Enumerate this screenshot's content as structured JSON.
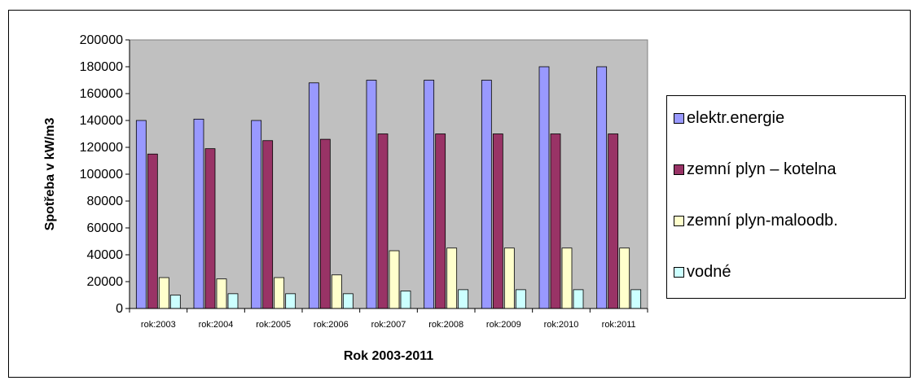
{
  "chart_data": {
    "type": "bar",
    "title": "",
    "xlabel": "Rok 2003-2011",
    "ylabel": "Spotřeba v kW/m3",
    "ylim": [
      0,
      200000
    ],
    "yticks": [
      "0",
      "20000",
      "40000",
      "60000",
      "80000",
      "100000",
      "120000",
      "140000",
      "160000",
      "180000",
      "200000"
    ],
    "grid": false,
    "legend_position": "right",
    "categories": [
      "rok:2003",
      "rok:2004",
      "rok:2005",
      "rok:2006",
      "rok:2007",
      "rok:2008",
      "rok:2009",
      "rok:2010",
      "rok:2011"
    ],
    "series": [
      {
        "name": "elektr.energie",
        "color": "#9999ff",
        "values": [
          140000,
          141000,
          140000,
          168000,
          170000,
          170000,
          170000,
          180000,
          180000
        ]
      },
      {
        "name": "zemní plyn – kotelna",
        "color": "#993366",
        "values": [
          115000,
          119000,
          125000,
          126000,
          130000,
          130000,
          130000,
          130000,
          130000
        ]
      },
      {
        "name": "zemní plyn-maloodb.",
        "color": "#ffffcc",
        "values": [
          23000,
          22000,
          23000,
          25000,
          43000,
          45000,
          45000,
          45000,
          45000
        ]
      },
      {
        "name": "vodné",
        "color": "#ccffff",
        "values": [
          10000,
          11000,
          11000,
          11000,
          13000,
          14000,
          14000,
          14000,
          14000
        ]
      }
    ],
    "plot_background": "#c0c0c0"
  }
}
